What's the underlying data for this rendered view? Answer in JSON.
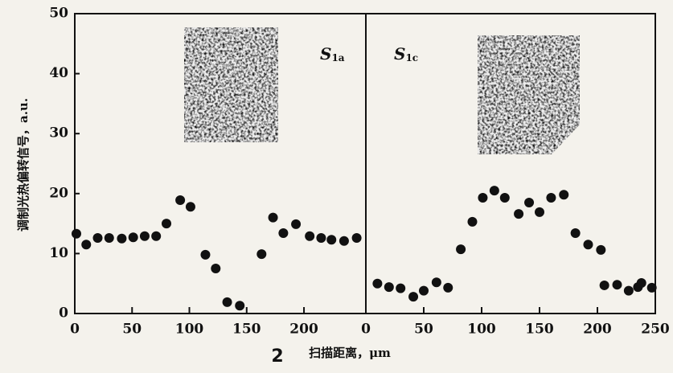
{
  "chart_data": [
    {
      "type": "scatter",
      "panel_label": {
        "main": "S",
        "sub": "1a"
      },
      "y_label": "调制光热偏转信号，a.u.",
      "x_label": "扫描距离，μm",
      "annotation": "2",
      "xlim": [
        0,
        254
      ],
      "xticks": [
        0,
        50,
        100,
        150,
        200
      ],
      "ylim": [
        0,
        50
      ],
      "yticks": [
        0,
        10,
        20,
        30,
        40,
        50
      ],
      "color": "#111111",
      "x": [
        1.4,
        10,
        20,
        30,
        41,
        51,
        61,
        71,
        80,
        92,
        101,
        114,
        123,
        133,
        144,
        163,
        173,
        182,
        193,
        205,
        215,
        224,
        235,
        246
      ],
      "values": [
        13.3,
        11.5,
        12.6,
        12.6,
        12.5,
        12.7,
        12.9,
        12.9,
        15.0,
        18.9,
        17.8,
        9.8,
        7.5,
        1.9,
        1.3,
        9.9,
        16.0,
        13.4,
        14.9,
        12.9,
        12.6,
        12.3,
        12.1,
        12.6
      ]
    },
    {
      "type": "scatter",
      "panel_label": {
        "main": "S",
        "sub": "1c"
      },
      "xlim": [
        0,
        250
      ],
      "xticks": [
        0,
        50,
        100,
        150,
        200,
        250
      ],
      "ylim": [
        0,
        50
      ],
      "color": "#111111",
      "x": [
        10,
        20,
        30,
        41,
        50,
        61,
        71,
        82,
        92,
        101,
        111,
        120,
        132,
        141,
        150,
        160,
        171,
        181,
        192,
        203,
        206,
        217,
        227,
        235,
        238,
        247
      ],
      "values": [
        5.0,
        4.4,
        4.2,
        2.8,
        3.8,
        5.2,
        4.3,
        10.7,
        15.3,
        19.3,
        20.5,
        19.3,
        16.6,
        18.5,
        16.9,
        19.3,
        19.8,
        13.4,
        11.5,
        10.6,
        4.7,
        4.8,
        3.8,
        4.4,
        5.1,
        4.3
      ]
    }
  ]
}
